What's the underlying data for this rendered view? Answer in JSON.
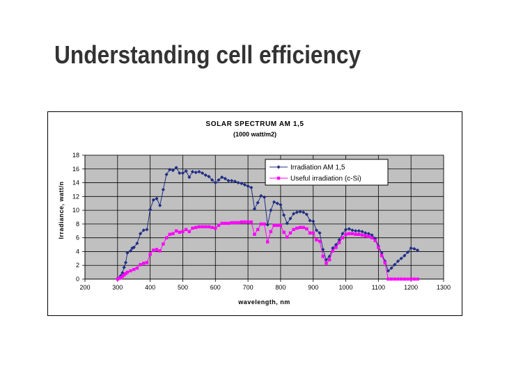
{
  "slide": {
    "title": "Understanding cell efficiency"
  },
  "colors": {
    "series1": "#1F2D86",
    "series2": "#FF00FF",
    "plot_bg": "#C0C0C0",
    "grid": "#000000",
    "title_text": "#333333"
  },
  "chart_data": {
    "type": "line",
    "title": "SOLAR SPECTRUM AM 1,5",
    "subtitle": "(1000 watt/m2)",
    "xlabel": "wavelength, nm",
    "ylabel": "Irradiance, watt/n",
    "xlim": [
      200,
      1300
    ],
    "ylim": [
      0,
      18
    ],
    "xticks": [
      200,
      300,
      400,
      500,
      600,
      700,
      800,
      900,
      1000,
      1100,
      1200,
      1300
    ],
    "yticks": [
      0,
      2,
      4,
      6,
      8,
      10,
      12,
      14,
      16,
      18
    ],
    "grid": true,
    "legend_position": "top-right",
    "series": [
      {
        "name": "Irradiation AM 1,5",
        "marker": "diamond",
        "points": [
          [
            300,
            0
          ],
          [
            305,
            0.2
          ],
          [
            310,
            0.5
          ],
          [
            315,
            0.9
          ],
          [
            320,
            1.7
          ],
          [
            325,
            2.4
          ],
          [
            330,
            3.8
          ],
          [
            340,
            4.1
          ],
          [
            345,
            4.5
          ],
          [
            350,
            4.6
          ],
          [
            360,
            5.2
          ],
          [
            370,
            6.6
          ],
          [
            380,
            7.1
          ],
          [
            390,
            7.2
          ],
          [
            400,
            10.1
          ],
          [
            410,
            11.5
          ],
          [
            420,
            11.7
          ],
          [
            430,
            10.7
          ],
          [
            440,
            13.0
          ],
          [
            450,
            15.2
          ],
          [
            460,
            15.9
          ],
          [
            470,
            15.8
          ],
          [
            480,
            16.2
          ],
          [
            490,
            15.4
          ],
          [
            500,
            15.4
          ],
          [
            510,
            15.7
          ],
          [
            520,
            14.8
          ],
          [
            530,
            15.6
          ],
          [
            540,
            15.5
          ],
          [
            550,
            15.6
          ],
          [
            560,
            15.4
          ],
          [
            570,
            15.1
          ],
          [
            580,
            14.9
          ],
          [
            590,
            14.4
          ],
          [
            600,
            14.0
          ],
          [
            610,
            14.4
          ],
          [
            620,
            14.8
          ],
          [
            630,
            14.6
          ],
          [
            640,
            14.3
          ],
          [
            650,
            14.3
          ],
          [
            660,
            14.2
          ],
          [
            670,
            14.0
          ],
          [
            680,
            13.9
          ],
          [
            690,
            13.7
          ],
          [
            700,
            13.5
          ],
          [
            710,
            13.3
          ],
          [
            720,
            10.2
          ],
          [
            730,
            11.1
          ],
          [
            740,
            12.1
          ],
          [
            750,
            11.9
          ],
          [
            760,
            7.9
          ],
          [
            770,
            10.0
          ],
          [
            780,
            11.2
          ],
          [
            790,
            11.0
          ],
          [
            800,
            10.8
          ],
          [
            810,
            9.3
          ],
          [
            820,
            8.1
          ],
          [
            830,
            8.8
          ],
          [
            840,
            9.5
          ],
          [
            850,
            9.7
          ],
          [
            860,
            9.8
          ],
          [
            870,
            9.7
          ],
          [
            880,
            9.4
          ],
          [
            890,
            8.5
          ],
          [
            900,
            8.4
          ],
          [
            910,
            7.1
          ],
          [
            920,
            6.7
          ],
          [
            930,
            4.3
          ],
          [
            940,
            2.8
          ],
          [
            950,
            3.3
          ],
          [
            960,
            4.5
          ],
          [
            970,
            5.0
          ],
          [
            980,
            5.7
          ],
          [
            990,
            6.6
          ],
          [
            1000,
            7.2
          ],
          [
            1010,
            7.3
          ],
          [
            1020,
            7.1
          ],
          [
            1030,
            7.0
          ],
          [
            1040,
            7.0
          ],
          [
            1050,
            6.9
          ],
          [
            1060,
            6.7
          ],
          [
            1070,
            6.6
          ],
          [
            1080,
            6.4
          ],
          [
            1090,
            5.9
          ],
          [
            1100,
            4.8
          ],
          [
            1110,
            3.8
          ],
          [
            1120,
            2.6
          ],
          [
            1130,
            1.2
          ],
          [
            1140,
            1.6
          ],
          [
            1150,
            2.1
          ],
          [
            1160,
            2.6
          ],
          [
            1170,
            3.0
          ],
          [
            1180,
            3.4
          ],
          [
            1190,
            3.9
          ],
          [
            1200,
            4.5
          ],
          [
            1210,
            4.4
          ],
          [
            1220,
            4.2
          ]
        ]
      },
      {
        "name": "Useful irradiation (c-Si)",
        "marker": "square",
        "points": [
          [
            300,
            0
          ],
          [
            305,
            0.1
          ],
          [
            310,
            0.2
          ],
          [
            315,
            0.4
          ],
          [
            320,
            0.6
          ],
          [
            325,
            0.8
          ],
          [
            330,
            1.0
          ],
          [
            340,
            1.2
          ],
          [
            350,
            1.4
          ],
          [
            360,
            1.6
          ],
          [
            370,
            2.1
          ],
          [
            380,
            2.3
          ],
          [
            390,
            2.4
          ],
          [
            400,
            3.6
          ],
          [
            410,
            4.2
          ],
          [
            420,
            4.3
          ],
          [
            430,
            4.1
          ],
          [
            440,
            5.1
          ],
          [
            450,
            6.0
          ],
          [
            460,
            6.5
          ],
          [
            470,
            6.6
          ],
          [
            480,
            7.0
          ],
          [
            490,
            6.8
          ],
          [
            500,
            6.9
          ],
          [
            510,
            7.2
          ],
          [
            520,
            6.9
          ],
          [
            530,
            7.4
          ],
          [
            540,
            7.5
          ],
          [
            550,
            7.6
          ],
          [
            560,
            7.6
          ],
          [
            570,
            7.6
          ],
          [
            580,
            7.6
          ],
          [
            590,
            7.5
          ],
          [
            600,
            7.4
          ],
          [
            610,
            7.8
          ],
          [
            620,
            8.1
          ],
          [
            630,
            8.1
          ],
          [
            640,
            8.1
          ],
          [
            650,
            8.2
          ],
          [
            660,
            8.2
          ],
          [
            670,
            8.2
          ],
          [
            680,
            8.3
          ],
          [
            690,
            8.3
          ],
          [
            700,
            8.3
          ],
          [
            710,
            8.3
          ],
          [
            720,
            6.5
          ],
          [
            730,
            7.2
          ],
          [
            740,
            8.0
          ],
          [
            750,
            8.0
          ],
          [
            760,
            5.4
          ],
          [
            770,
            6.9
          ],
          [
            780,
            7.8
          ],
          [
            790,
            7.8
          ],
          [
            800,
            7.8
          ],
          [
            810,
            6.8
          ],
          [
            820,
            6.1
          ],
          [
            830,
            6.7
          ],
          [
            840,
            7.2
          ],
          [
            850,
            7.4
          ],
          [
            860,
            7.5
          ],
          [
            870,
            7.5
          ],
          [
            880,
            7.3
          ],
          [
            890,
            6.7
          ],
          [
            900,
            6.7
          ],
          [
            910,
            5.7
          ],
          [
            920,
            5.5
          ],
          [
            930,
            3.3
          ],
          [
            940,
            2.3
          ],
          [
            950,
            2.8
          ],
          [
            960,
            4.1
          ],
          [
            970,
            4.6
          ],
          [
            980,
            5.3
          ],
          [
            990,
            6.0
          ],
          [
            1000,
            6.5
          ],
          [
            1010,
            6.6
          ],
          [
            1020,
            6.6
          ],
          [
            1030,
            6.5
          ],
          [
            1040,
            6.5
          ],
          [
            1050,
            6.4
          ],
          [
            1060,
            6.3
          ],
          [
            1070,
            6.2
          ],
          [
            1080,
            6.0
          ],
          [
            1090,
            5.6
          ],
          [
            1100,
            4.6
          ],
          [
            1110,
            3.4
          ],
          [
            1120,
            2.4
          ],
          [
            1130,
            0
          ],
          [
            1140,
            0
          ],
          [
            1150,
            0
          ],
          [
            1160,
            0
          ],
          [
            1170,
            0
          ],
          [
            1180,
            0
          ],
          [
            1190,
            0
          ],
          [
            1200,
            0
          ],
          [
            1210,
            0
          ],
          [
            1220,
            0
          ]
        ]
      }
    ]
  }
}
